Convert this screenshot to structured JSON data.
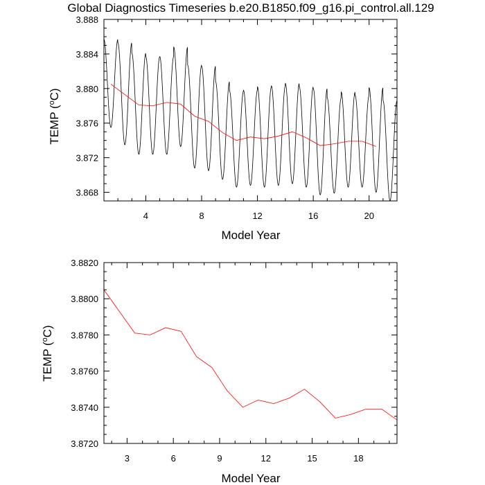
{
  "title": "Global Diagnostics Timeseries b.e20.B1850.f09_g16.pi_control.all.129",
  "chart_data": [
    {
      "type": "line",
      "name": "monthly-and-annual",
      "xlabel": "Model Year",
      "ylabel_main": "TEMP (",
      "ylabel_unit": "C)",
      "ylabel_close": "",
      "xlim": [
        1.0,
        22.0
      ],
      "ylim": [
        3.867,
        3.888
      ],
      "xticks": [
        4,
        8,
        12,
        16,
        20
      ],
      "xtick_labels": [
        "4",
        "8",
        "12",
        "16",
        "20"
      ],
      "yticks": [
        3.868,
        3.872,
        3.876,
        3.88,
        3.884,
        3.888
      ],
      "ytick_labels": [
        "3.868",
        "3.872",
        "3.876",
        "3.880",
        "3.884",
        "3.888"
      ],
      "series": [
        {
          "name": "monthly",
          "color": "#000000",
          "kind": "seasonal-cycle",
          "cycle_start": 1.0,
          "cycle_end": 22.0,
          "years": [
            1,
            2,
            3,
            4,
            5,
            6,
            7,
            8,
            9,
            10,
            11,
            12,
            13,
            14,
            15,
            16,
            17,
            18,
            19,
            20,
            21
          ],
          "maxima": [
            3.8857,
            3.8853,
            3.8841,
            3.8837,
            3.8837,
            3.8848,
            3.8827,
            3.8826,
            3.8808,
            3.8797,
            3.8798,
            3.8802,
            3.8803,
            3.8806,
            3.8802,
            3.88,
            3.8789,
            3.8796,
            3.8792,
            3.8801,
            3.8786
          ],
          "minima": [
            3.8755,
            3.8735,
            3.8724,
            3.8724,
            3.8724,
            3.8733,
            3.8708,
            3.8705,
            3.8695,
            3.8686,
            3.8688,
            3.8686,
            3.8688,
            3.869,
            3.8686,
            3.8677,
            3.8679,
            3.8686,
            3.8686,
            3.868,
            3.867
          ]
        },
        {
          "name": "annual-mean",
          "color": "#ff0000",
          "x": [
            1.5,
            2.5,
            3.5,
            4.5,
            5.5,
            6.5,
            7.5,
            8.5,
            9.5,
            10.5,
            11.5,
            12.5,
            13.5,
            14.5,
            15.5,
            16.5,
            17.5,
            18.5,
            19.5,
            20.5
          ],
          "y": [
            3.8805,
            3.8793,
            3.8781,
            3.878,
            3.8784,
            3.8782,
            3.8768,
            3.8762,
            3.8749,
            3.874,
            3.8744,
            3.8742,
            3.8745,
            3.875,
            3.8743,
            3.8734,
            3.8736,
            3.8739,
            3.8739,
            3.8733
          ]
        }
      ]
    },
    {
      "type": "line",
      "name": "annual",
      "xlabel": "Model Year",
      "ylabel_main": "TEMP (",
      "ylabel_unit": "C)",
      "ylabel_close": "",
      "xlim": [
        1.5,
        20.5
      ],
      "ylim": [
        3.872,
        3.882
      ],
      "xticks": [
        3,
        6,
        9,
        12,
        15,
        18
      ],
      "xtick_labels": [
        "3",
        "6",
        "9",
        "12",
        "15",
        "18"
      ],
      "yticks": [
        3.872,
        3.874,
        3.876,
        3.878,
        3.88,
        3.882
      ],
      "ytick_labels": [
        "3.8720",
        "3.8740",
        "3.8760",
        "3.8780",
        "3.8800",
        "3.8820"
      ],
      "series": [
        {
          "name": "annual-mean",
          "color": "#ff0000",
          "x": [
            1.5,
            2.5,
            3.5,
            4.5,
            5.5,
            6.5,
            7.5,
            8.5,
            9.5,
            10.5,
            11.5,
            12.5,
            13.5,
            14.5,
            15.5,
            16.5,
            17.5,
            18.5,
            19.5,
            20.5
          ],
          "y": [
            3.8805,
            3.8793,
            3.8781,
            3.878,
            3.8784,
            3.8782,
            3.8768,
            3.8762,
            3.8749,
            3.874,
            3.8744,
            3.8742,
            3.8745,
            3.875,
            3.8743,
            3.8734,
            3.8736,
            3.8739,
            3.8739,
            3.8733
          ]
        }
      ]
    }
  ]
}
